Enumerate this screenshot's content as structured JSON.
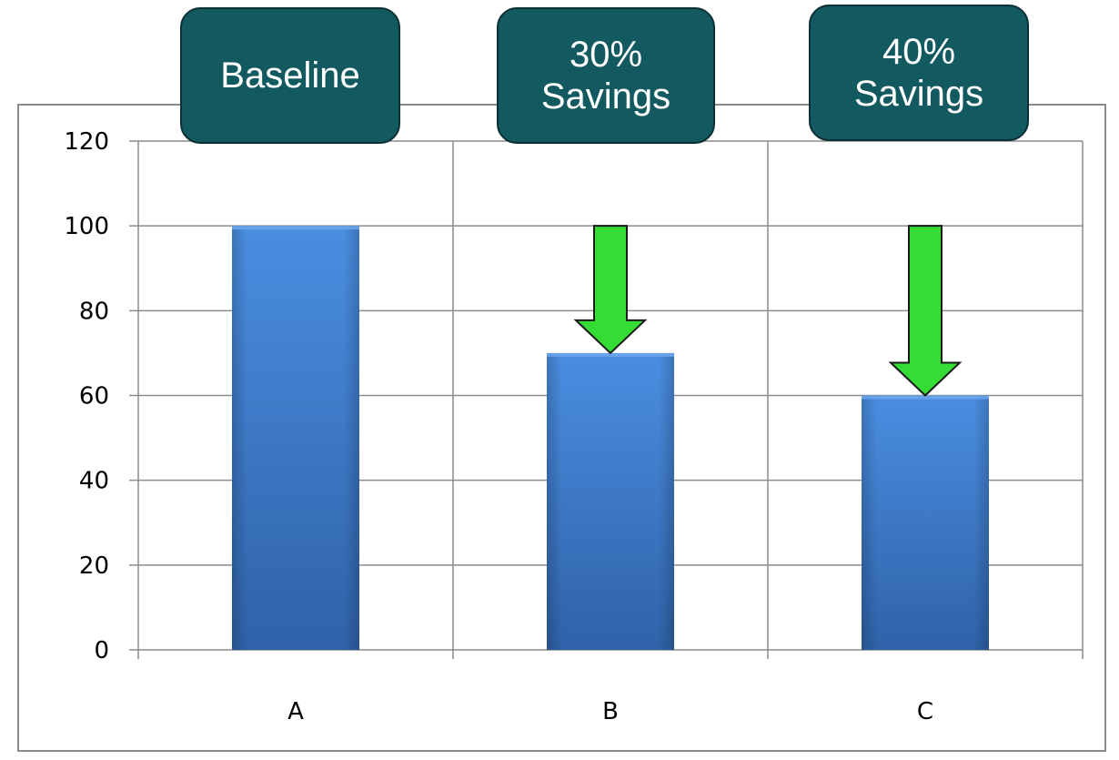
{
  "callouts": [
    {
      "line1": "Baseline",
      "line2": ""
    },
    {
      "line1": "30%",
      "line2": "Savings"
    },
    {
      "line1": "40%",
      "line2": "Savings"
    }
  ],
  "colors": {
    "bar": "#3b7dd3",
    "bar_dark": "#2f62a8",
    "arrow": "#33dd33",
    "callout_bg": "#135a60",
    "grid": "#8c8c8c"
  },
  "chart_data": {
    "type": "bar",
    "categories": [
      "A",
      "B",
      "C"
    ],
    "values": [
      100,
      70,
      60
    ],
    "ylim": [
      0,
      120
    ],
    "yticks": [
      0,
      20,
      40,
      60,
      80,
      100,
      120
    ],
    "grid": true,
    "title": "",
    "xlabel": "",
    "ylabel": "",
    "arrows_on": [
      "B",
      "C"
    ]
  }
}
